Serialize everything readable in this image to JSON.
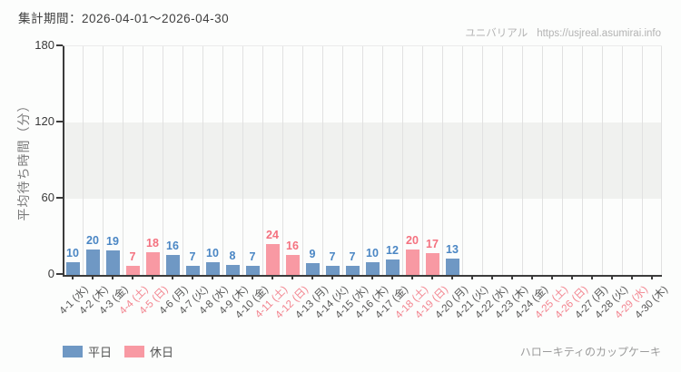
{
  "header": {
    "period_label": "集計期間：2026-04-01〜2026-04-30",
    "site_name": "ユニバリアル",
    "site_url": "https://usjreal.asumirai.info"
  },
  "footer": {
    "attraction_name": "ハローキティのカップケーキ"
  },
  "legend": [
    {
      "key": "weekday",
      "label": "平日",
      "color": "#6f98c4"
    },
    {
      "key": "holiday",
      "label": "休日",
      "color": "#f899a3"
    }
  ],
  "colors": {
    "weekday_bar": "#6f98c4",
    "weekday_value": "#4a86c4",
    "holiday_bar": "#f899a3",
    "holiday_value": "#f4717f",
    "weekday_axis_label": "#565656",
    "holiday_axis_label": "#f2838e",
    "band": "#f0f1ef",
    "gridline": "#e1e1e1",
    "axis": "#3b3b3b"
  },
  "chart_data": {
    "type": "bar",
    "title": "",
    "xlabel": "",
    "ylabel": "平均待ち時間（分）",
    "ylim": [
      0,
      180
    ],
    "yticks": [
      0,
      60,
      120,
      180
    ],
    "band_y_range": [
      60,
      120
    ],
    "grid": true,
    "legend_position": "bottom-left",
    "points": [
      {
        "label": "4-1 (水)",
        "value": 10,
        "day": "weekday"
      },
      {
        "label": "4-2 (木)",
        "value": 20,
        "day": "weekday"
      },
      {
        "label": "4-3 (金)",
        "value": 19,
        "day": "weekday"
      },
      {
        "label": "4-4 (土)",
        "value": 7,
        "day": "holiday"
      },
      {
        "label": "4-5 (日)",
        "value": 18,
        "day": "holiday"
      },
      {
        "label": "4-6 (月)",
        "value": 16,
        "day": "weekday"
      },
      {
        "label": "4-7 (火)",
        "value": 7,
        "day": "weekday"
      },
      {
        "label": "4-8 (水)",
        "value": 10,
        "day": "weekday"
      },
      {
        "label": "4-9 (木)",
        "value": 8,
        "day": "weekday"
      },
      {
        "label": "4-10 (金)",
        "value": 7,
        "day": "weekday"
      },
      {
        "label": "4-11 (土)",
        "value": 24,
        "day": "holiday"
      },
      {
        "label": "4-12 (日)",
        "value": 16,
        "day": "holiday"
      },
      {
        "label": "4-13 (月)",
        "value": 9,
        "day": "weekday"
      },
      {
        "label": "4-14 (火)",
        "value": 7,
        "day": "weekday"
      },
      {
        "label": "4-15 (水)",
        "value": 7,
        "day": "weekday"
      },
      {
        "label": "4-16 (木)",
        "value": 10,
        "day": "weekday"
      },
      {
        "label": "4-17 (金)",
        "value": 12,
        "day": "weekday"
      },
      {
        "label": "4-18 (土)",
        "value": 20,
        "day": "holiday"
      },
      {
        "label": "4-19 (日)",
        "value": 17,
        "day": "holiday"
      },
      {
        "label": "4-20 (月)",
        "value": 13,
        "day": "weekday"
      },
      {
        "label": "4-21 (火)",
        "value": null,
        "day": "weekday"
      },
      {
        "label": "4-22 (水)",
        "value": null,
        "day": "weekday"
      },
      {
        "label": "4-23 (木)",
        "value": null,
        "day": "weekday"
      },
      {
        "label": "4-24 (金)",
        "value": null,
        "day": "weekday"
      },
      {
        "label": "4-25 (土)",
        "value": null,
        "day": "holiday"
      },
      {
        "label": "4-26 (日)",
        "value": null,
        "day": "holiday"
      },
      {
        "label": "4-27 (月)",
        "value": null,
        "day": "weekday"
      },
      {
        "label": "4-28 (火)",
        "value": null,
        "day": "weekday"
      },
      {
        "label": "4-29 (水)",
        "value": null,
        "day": "holiday"
      },
      {
        "label": "4-30 (木)",
        "value": null,
        "day": "weekday"
      }
    ]
  }
}
